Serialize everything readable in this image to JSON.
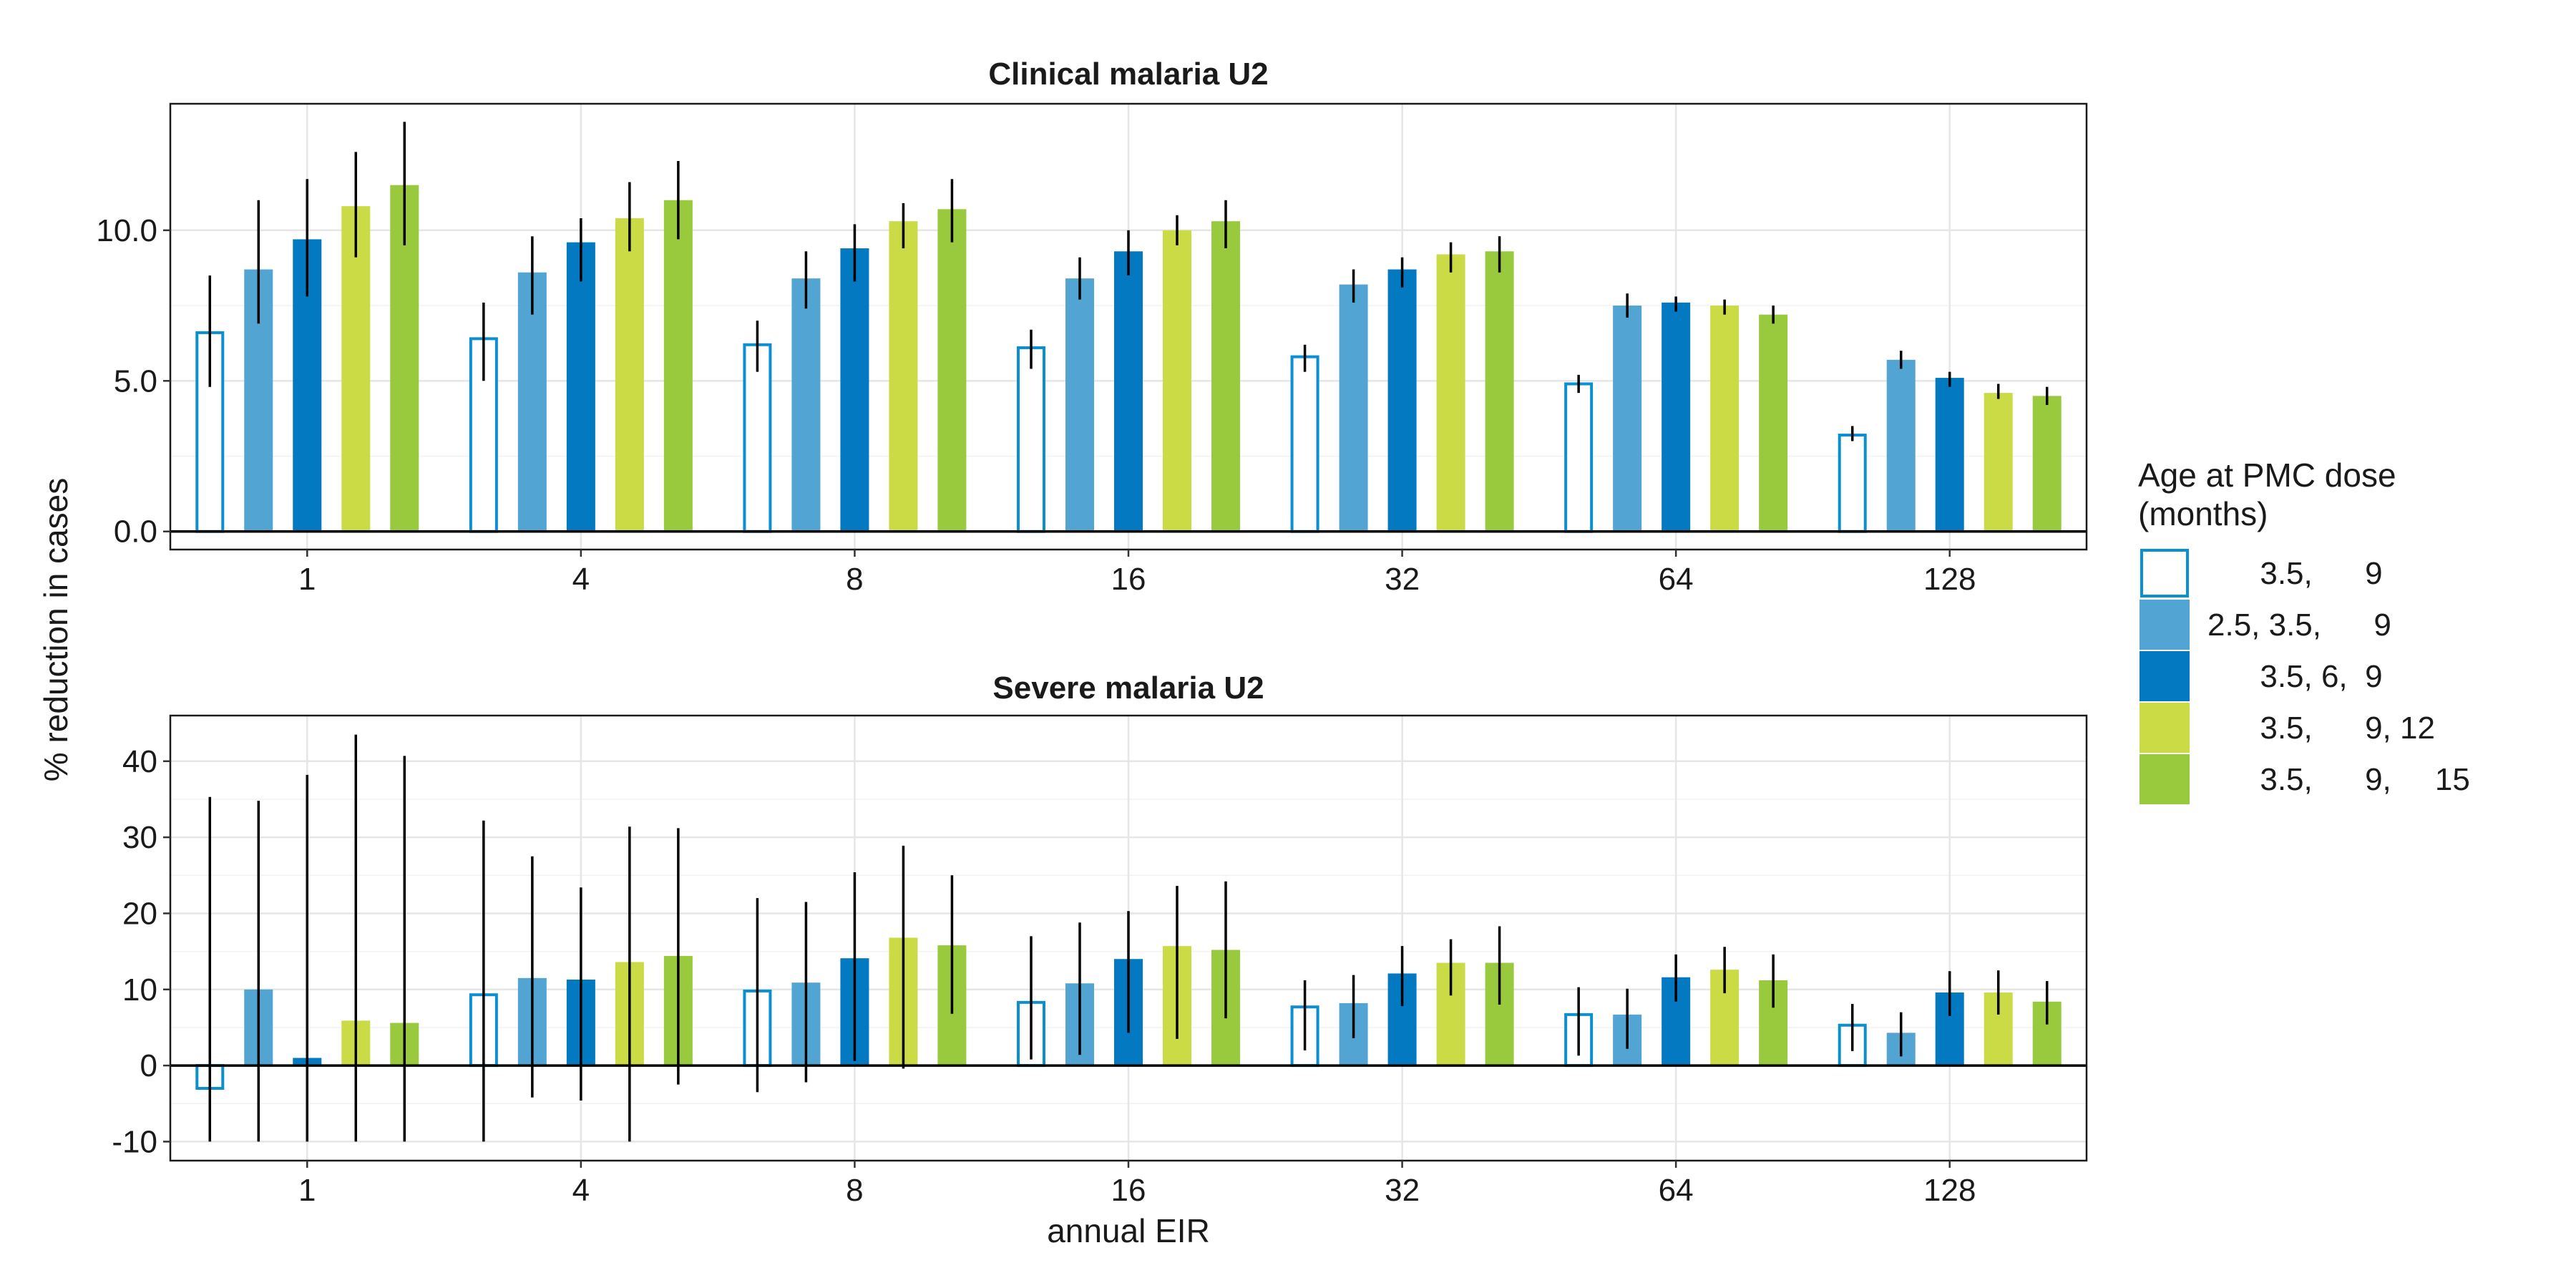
{
  "chart_data": {
    "type": "bar",
    "shared": {
      "categories": [
        "1",
        "4",
        "8",
        "16",
        "32",
        "64",
        "128"
      ],
      "xlabel": "annual EIR",
      "ylabel": "% reduction in cases",
      "legend": {
        "title_line1": "Age at PMC dose",
        "title_line2": "(months)",
        "placement": "right",
        "entries": [
          {
            "label": "      3.5,      9",
            "color": "#0a8fd0",
            "style": "outline"
          },
          {
            "label": "2.5, 3.5,      9",
            "color": "#52a5d3",
            "style": "filled"
          },
          {
            "label": "      3.5, 6,  9",
            "color": "#0279c0",
            "style": "filled"
          },
          {
            "label": "      3.5,      9, 12",
            "color": "#cbdb46",
            "style": "filled"
          },
          {
            "label": "      3.5,      9,     15",
            "color": "#99c93c",
            "style": "filled"
          }
        ]
      },
      "grid": true
    },
    "panels": [
      {
        "title": "Clinical malaria U2",
        "ylim": [
          -0.6,
          14.2
        ],
        "yticks": [
          "0.0",
          "5.0",
          "10.0"
        ],
        "ytick_values": [
          0,
          5,
          10
        ],
        "series": [
          {
            "values": [
              6.6,
              6.4,
              6.2,
              6.1,
              5.8,
              4.9,
              3.2
            ],
            "lower": [
              4.8,
              5.0,
              5.3,
              5.4,
              5.3,
              4.6,
              3.0
            ],
            "upper": [
              8.5,
              7.6,
              7.0,
              6.7,
              6.2,
              5.2,
              3.5
            ]
          },
          {
            "values": [
              8.7,
              8.6,
              8.4,
              8.4,
              8.2,
              7.5,
              5.7
            ],
            "lower": [
              6.9,
              7.2,
              7.4,
              7.7,
              7.6,
              7.1,
              5.4
            ],
            "upper": [
              11.0,
              9.8,
              9.3,
              9.1,
              8.7,
              7.9,
              6.0
            ]
          },
          {
            "values": [
              9.7,
              9.6,
              9.4,
              9.3,
              8.7,
              7.6,
              5.1
            ],
            "lower": [
              7.8,
              8.3,
              8.3,
              8.5,
              8.1,
              7.3,
              4.8
            ],
            "upper": [
              11.7,
              10.4,
              10.2,
              10.0,
              9.1,
              7.8,
              5.3
            ]
          },
          {
            "values": [
              10.8,
              10.4,
              10.3,
              10.0,
              9.2,
              7.5,
              4.6
            ],
            "lower": [
              9.1,
              9.3,
              9.4,
              9.5,
              8.6,
              7.2,
              4.4
            ],
            "upper": [
              12.6,
              11.6,
              10.9,
              10.5,
              9.6,
              7.7,
              4.9
            ]
          },
          {
            "values": [
              11.5,
              11.0,
              10.7,
              10.3,
              9.3,
              7.2,
              4.5
            ],
            "lower": [
              9.5,
              9.7,
              9.6,
              9.4,
              8.6,
              6.9,
              4.2
            ],
            "upper": [
              13.6,
              12.3,
              11.7,
              11.0,
              9.8,
              7.5,
              4.8
            ]
          }
        ]
      },
      {
        "title": "Severe malaria U2",
        "ylim": [
          -12.5,
          46
        ],
        "yticks": [
          "-10",
          "0",
          "10",
          "20",
          "30",
          "40"
        ],
        "ytick_values": [
          -10,
          0,
          10,
          20,
          30,
          40
        ],
        "series": [
          {
            "values": [
              -3.0,
              9.3,
              9.8,
              8.3,
              7.7,
              6.7,
              5.3
            ],
            "lower": [
              -10,
              -10,
              -3.5,
              0.8,
              2.0,
              1.3,
              1.9
            ],
            "upper": [
              35.3,
              32.2,
              22.0,
              17.0,
              11.2,
              10.3,
              8.1
            ]
          },
          {
            "values": [
              10.0,
              11.5,
              10.9,
              10.8,
              8.2,
              6.7,
              4.3
            ],
            "lower": [
              -10,
              -4.2,
              -2.2,
              1.4,
              3.6,
              2.2,
              1.2
            ],
            "upper": [
              34.8,
              27.5,
              21.5,
              18.8,
              11.9,
              10.1,
              7.0
            ]
          },
          {
            "values": [
              1.0,
              11.3,
              14.1,
              14.0,
              12.1,
              11.6,
              9.6
            ],
            "lower": [
              -10,
              -4.6,
              0.6,
              4.3,
              7.8,
              8.4,
              6.5
            ],
            "upper": [
              38.2,
              23.4,
              25.4,
              20.3,
              15.7,
              14.6,
              12.4
            ]
          },
          {
            "values": [
              5.9,
              13.6,
              16.8,
              15.7,
              13.5,
              12.6,
              9.6
            ],
            "lower": [
              -10,
              -10,
              -0.4,
              3.5,
              9.2,
              9.5,
              6.7
            ],
            "upper": [
              43.5,
              31.4,
              28.9,
              23.6,
              16.6,
              15.6,
              12.5
            ]
          },
          {
            "values": [
              5.6,
              14.4,
              15.8,
              15.2,
              13.5,
              11.2,
              8.4
            ],
            "lower": [
              -10,
              -2.5,
              6.8,
              6.2,
              8.0,
              7.6,
              5.4
            ],
            "upper": [
              40.7,
              31.2,
              25.0,
              24.2,
              18.3,
              14.6,
              11.1
            ]
          }
        ]
      }
    ]
  }
}
